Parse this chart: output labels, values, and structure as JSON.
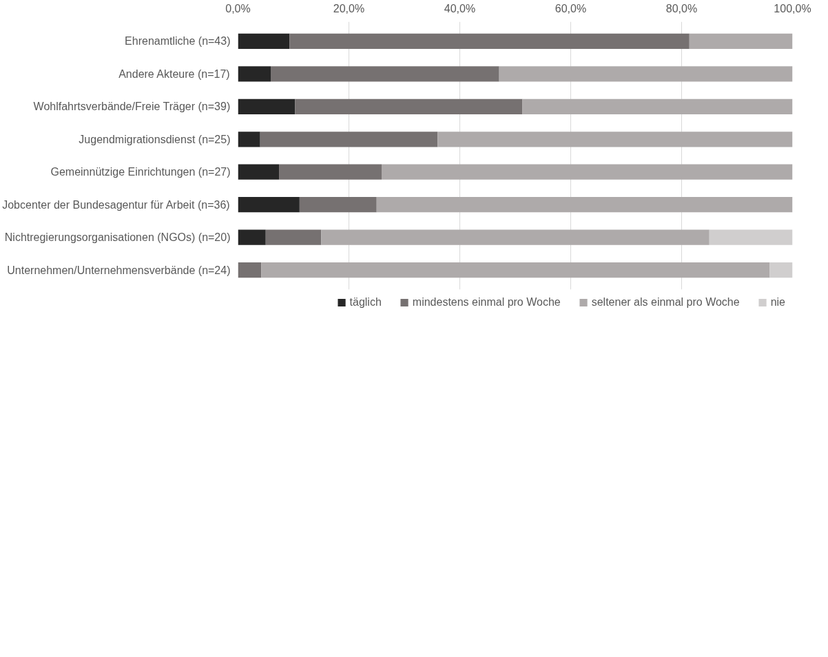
{
  "chart_data": {
    "type": "bar",
    "orientation": "horizontal",
    "stacked": true,
    "categories": [
      "Ehrenamtliche (n=43)",
      "Andere Akteure (n=17)",
      "Wohlfahrtsverbände/Freie Träger (n=39)",
      "Jugendmigrationsdienst (n=25)",
      "Gemeinnützige Einrichtungen (n=27)",
      "Jobcenter der Bundesagentur für Arbeit (n=36)",
      "Nichtregierungsorganisationen (NGOs) (n=20)",
      "Unternehmen/Unternehmensverbände (n=24)"
    ],
    "series": [
      {
        "name": "täglich",
        "color": "#262626",
        "values": [
          9.3,
          5.9,
          10.3,
          4.0,
          7.4,
          11.1,
          5.0,
          0
        ]
      },
      {
        "name": "mindestens einmal pro Woche",
        "color": "#767171",
        "values": [
          72.1,
          41.2,
          41.0,
          32.0,
          18.5,
          13.9,
          10.0,
          4.2
        ]
      },
      {
        "name": "seltener als einmal pro Woche",
        "color": "#aeaaaa",
        "values": [
          18.6,
          52.9,
          48.7,
          64.0,
          74.1,
          75.0,
          70.0,
          91.7
        ]
      },
      {
        "name": "nie",
        "color": "#d0cece",
        "values": [
          0,
          0,
          0,
          0,
          0,
          0,
          15.0,
          4.2
        ]
      }
    ],
    "xlim": [
      0,
      100
    ],
    "xticks": [
      {
        "value": 0,
        "label": "0,0%"
      },
      {
        "value": 20,
        "label": "20,0%"
      },
      {
        "value": 40,
        "label": "40,0%"
      },
      {
        "value": 60,
        "label": "60,0%"
      },
      {
        "value": 80,
        "label": "80,0%"
      },
      {
        "value": 100,
        "label": "100,0%"
      }
    ],
    "grid": "x",
    "legend": "bottom"
  }
}
